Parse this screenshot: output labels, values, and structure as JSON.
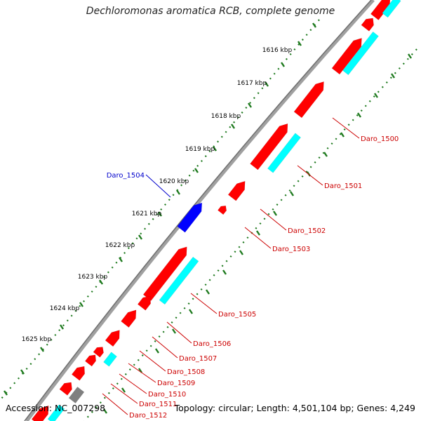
{
  "title": "Dechloromonas aromatica RCB, complete genome",
  "footer": {
    "accession": "Accession: NC_007298",
    "summary": "Topology: circular; Length: 4,501,104 bp; Genes: 4,249"
  },
  "colors": {
    "forward_gene": "#ff0000",
    "reverse_gene": "#0000ff",
    "feature_cyan": "#00ffff",
    "other_gray": "#7f7f7f",
    "backbone": "#8c8c8c",
    "tick": "#1f7a1f",
    "label_red": "#cc0000",
    "label_blue": "#0000cc"
  },
  "ticks": [
    "1616 kbp",
    "1617 kbp",
    "1618 kbp",
    "1619 kbp",
    "1620 kbp",
    "1621 kbp",
    "1622 kbp",
    "1623 kbp",
    "1624 kbp",
    "1625 kbp"
  ],
  "gene_labels": {
    "reverse": [
      "Daro_1504"
    ],
    "forward": [
      "Daro_1500",
      "Daro_1501",
      "Daro_1502",
      "Daro_1503",
      "Daro_1505",
      "Daro_1506",
      "Daro_1507",
      "Daro_1508",
      "Daro_1509",
      "Daro_1510",
      "Daro_1511",
      "Daro_1512"
    ]
  }
}
